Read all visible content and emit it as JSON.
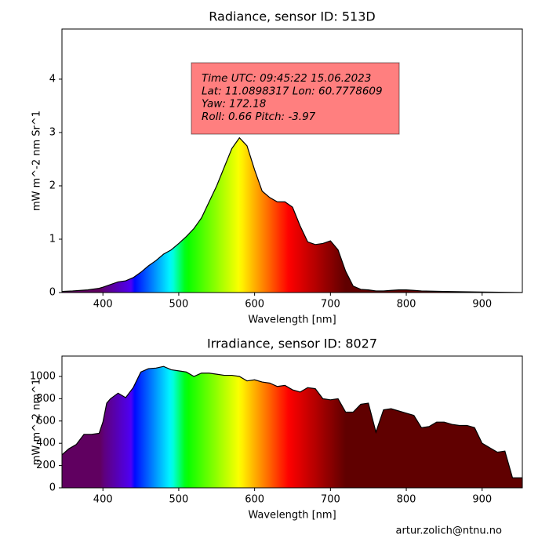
{
  "chart_data": [
    {
      "type": "area",
      "title": "Radiance, sensor ID: 513D",
      "x_label": "Wavelength [nm]",
      "y_label": "mW m^-2 nm Sr^1",
      "x": [
        345,
        360,
        380,
        395,
        400,
        410,
        420,
        430,
        440,
        450,
        460,
        470,
        480,
        490,
        500,
        510,
        520,
        530,
        540,
        550,
        560,
        570,
        580,
        590,
        600,
        610,
        620,
        630,
        640,
        650,
        660,
        670,
        680,
        690,
        700,
        710,
        720,
        730,
        740,
        750,
        760,
        770,
        780,
        790,
        800,
        810,
        820,
        850,
        900,
        953
      ],
      "values": [
        0.02,
        0.03,
        0.05,
        0.08,
        0.1,
        0.15,
        0.2,
        0.22,
        0.28,
        0.38,
        0.5,
        0.6,
        0.72,
        0.8,
        0.92,
        1.05,
        1.2,
        1.4,
        1.7,
        2.0,
        2.35,
        2.7,
        2.9,
        2.75,
        2.3,
        1.9,
        1.78,
        1.7,
        1.7,
        1.6,
        1.25,
        0.95,
        0.9,
        0.92,
        0.97,
        0.8,
        0.4,
        0.12,
        0.06,
        0.05,
        0.03,
        0.03,
        0.04,
        0.05,
        0.05,
        0.04,
        0.03,
        0.02,
        0.01,
        0.0
      ],
      "xlim": [
        346,
        953
      ],
      "xticks": [
        400,
        500,
        600,
        700,
        800,
        900
      ],
      "ylim": [
        0,
        4.94
      ],
      "yticks": [
        0,
        1,
        2,
        3,
        4
      ],
      "annotation": [
        "Time UTC: 09:45:22 15.06.2023",
        "Lat: 11.0898317 Lon: 60.7778609",
        "Yaw: 172.18",
        "Roll: 0.66 Pitch: -3.97"
      ]
    },
    {
      "type": "area",
      "title": "Irradiance, sensor ID: 8027",
      "x_label": "Wavelength [nm]",
      "y_label": "mW m^-2 nm^1",
      "x": [
        345,
        355,
        365,
        375,
        385,
        395,
        400,
        405,
        410,
        420,
        430,
        440,
        450,
        460,
        470,
        480,
        490,
        500,
        510,
        520,
        530,
        540,
        550,
        560,
        570,
        580,
        590,
        600,
        610,
        620,
        630,
        640,
        650,
        660,
        670,
        680,
        690,
        700,
        710,
        720,
        730,
        740,
        750,
        760,
        770,
        780,
        790,
        800,
        810,
        820,
        830,
        840,
        850,
        860,
        870,
        880,
        890,
        900,
        910,
        920,
        930,
        940,
        953
      ],
      "values": [
        290,
        350,
        390,
        480,
        480,
        490,
        590,
        760,
        800,
        850,
        810,
        900,
        1040,
        1070,
        1075,
        1090,
        1060,
        1050,
        1040,
        1000,
        1030,
        1030,
        1020,
        1010,
        1010,
        1000,
        960,
        970,
        950,
        940,
        910,
        920,
        880,
        860,
        900,
        890,
        800,
        790,
        800,
        680,
        680,
        750,
        760,
        500,
        700,
        710,
        690,
        670,
        650,
        540,
        550,
        590,
        590,
        570,
        560,
        560,
        540,
        400,
        360,
        320,
        330,
        90,
        90
      ],
      "xlim": [
        346,
        953
      ],
      "xticks": [
        400,
        500,
        600,
        700,
        800,
        900
      ],
      "ylim": [
        0,
        1183
      ],
      "yticks": [
        0,
        200,
        400,
        600,
        800,
        1000
      ]
    }
  ],
  "footer": "artur.zolich@ntnu.no"
}
